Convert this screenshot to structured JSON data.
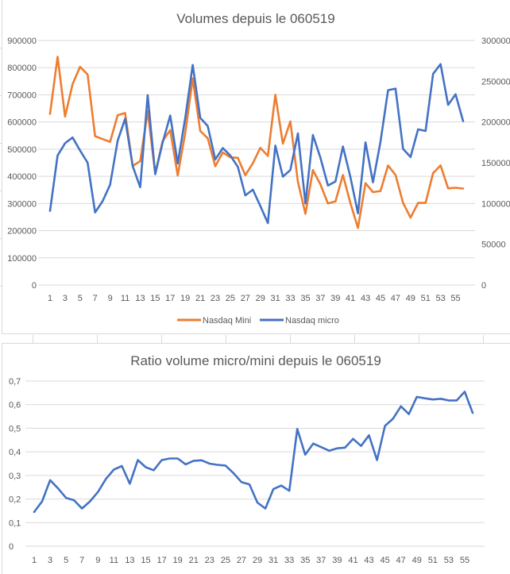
{
  "chart_data": [
    {
      "type": "line",
      "title": "Volumes depuis le 060519",
      "xlabel": "",
      "ylabel": "",
      "x": [
        1,
        2,
        3,
        4,
        5,
        6,
        7,
        8,
        9,
        10,
        11,
        12,
        13,
        14,
        15,
        16,
        17,
        18,
        19,
        20,
        21,
        22,
        23,
        24,
        25,
        26,
        27,
        28,
        29,
        30,
        31,
        32,
        33,
        34,
        35,
        36,
        37,
        38,
        39,
        40,
        41,
        42,
        43,
        44,
        45,
        46,
        47,
        48,
        49,
        50,
        51,
        52,
        53,
        54,
        55,
        56
      ],
      "x_tick_labels": [
        "1",
        "3",
        "5",
        "7",
        "9",
        "11",
        "13",
        "15",
        "17",
        "19",
        "21",
        "23",
        "25",
        "27",
        "29",
        "31",
        "33",
        "35",
        "37",
        "39",
        "41",
        "43",
        "45",
        "47",
        "49",
        "51",
        "53",
        "55"
      ],
      "ylim": [
        0,
        900000
      ],
      "y_tick_labels": [
        "0",
        "100000",
        "200000",
        "300000",
        "400000",
        "500000",
        "600000",
        "700000",
        "800000",
        "900000"
      ],
      "y2lim": [
        0,
        300000
      ],
      "y2_tick_labels": [
        "0",
        "50000",
        "100000",
        "150000",
        "200000",
        "250000",
        "300000"
      ],
      "grid": true,
      "legend": "bottom",
      "series": [
        {
          "name": "Nasdaq Mini",
          "axis": "left",
          "color": "#ED7D31",
          "values": [
            630000,
            840000,
            620000,
            740000,
            803000,
            775000,
            548000,
            537000,
            527000,
            625000,
            633000,
            438000,
            456000,
            640000,
            410000,
            530000,
            570000,
            403000,
            560000,
            760000,
            567000,
            540000,
            437000,
            488000,
            470000,
            468000,
            404000,
            448000,
            505000,
            475000,
            700000,
            520000,
            602000,
            380000,
            262000,
            423000,
            370000,
            300000,
            308000,
            405000,
            300000,
            210000,
            375000,
            342000,
            346000,
            440000,
            405000,
            302000,
            248000,
            302000,
            302000,
            412000,
            440000,
            356000,
            358000,
            355000
          ]
        },
        {
          "name": "Nasdaq micro",
          "axis": "right",
          "color": "#4472C4",
          "values": [
            91000,
            159000,
            174000,
            181000,
            165000,
            150000,
            89000,
            103000,
            123000,
            177000,
            204000,
            146000,
            120000,
            233000,
            136000,
            175000,
            208000,
            149000,
            205000,
            270000,
            205000,
            195000,
            154000,
            168000,
            159000,
            145000,
            110000,
            117000,
            97000,
            76000,
            171000,
            133000,
            141000,
            186000,
            100000,
            184000,
            156000,
            122000,
            127000,
            170000,
            132000,
            88000,
            175000,
            126000,
            176000,
            239000,
            241000,
            167000,
            157000,
            191000,
            189000,
            259000,
            271000,
            221000,
            234000,
            201000
          ]
        }
      ]
    },
    {
      "type": "line",
      "title": "Ratio volume micro/mini depuis le 060519",
      "xlabel": "",
      "ylabel": "",
      "x": [
        1,
        2,
        3,
        4,
        5,
        6,
        7,
        8,
        9,
        10,
        11,
        12,
        13,
        14,
        15,
        16,
        17,
        18,
        19,
        20,
        21,
        22,
        23,
        24,
        25,
        26,
        27,
        28,
        29,
        30,
        31,
        32,
        33,
        34,
        35,
        36,
        37,
        38,
        39,
        40,
        41,
        42,
        43,
        44,
        45,
        46,
        47,
        48,
        49,
        50,
        51,
        52,
        53,
        54,
        55,
        56
      ],
      "x_tick_labels": [
        "1",
        "3",
        "5",
        "7",
        "9",
        "11",
        "13",
        "15",
        "17",
        "19",
        "21",
        "23",
        "25",
        "27",
        "29",
        "31",
        "33",
        "35",
        "37",
        "39",
        "41",
        "43",
        "45",
        "47",
        "49",
        "51",
        "53",
        "55"
      ],
      "ylim": [
        0,
        0.7
      ],
      "y_tick_labels": [
        "0",
        "0,1",
        "0,2",
        "0,3",
        "0,4",
        "0,5",
        "0,6",
        "0,7"
      ],
      "grid": true,
      "legend": "none",
      "series": [
        {
          "name": "Ratio",
          "color": "#4472C4",
          "values": [
            0.145,
            0.19,
            0.28,
            0.245,
            0.205,
            0.195,
            0.16,
            0.19,
            0.23,
            0.285,
            0.325,
            0.34,
            0.265,
            0.365,
            0.335,
            0.322,
            0.365,
            0.372,
            0.372,
            0.347,
            0.362,
            0.364,
            0.35,
            0.345,
            0.342,
            0.31,
            0.272,
            0.262,
            0.185,
            0.16,
            0.242,
            0.257,
            0.235,
            0.497,
            0.388,
            0.435,
            0.42,
            0.405,
            0.415,
            0.418,
            0.455,
            0.425,
            0.47,
            0.365,
            0.51,
            0.54,
            0.593,
            0.56,
            0.633,
            0.627,
            0.622,
            0.625,
            0.618,
            0.618,
            0.655,
            0.565
          ]
        }
      ]
    }
  ]
}
